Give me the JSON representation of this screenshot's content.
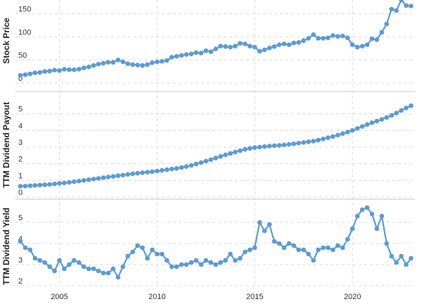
{
  "colors": {
    "series": "#5b9bd5",
    "grid": "#d9d9d9",
    "text": "#333333",
    "background": "#ffffff"
  },
  "chart_data": [
    {
      "type": "line",
      "ylabel": "Stock Price",
      "ylim": [
        0,
        180
      ],
      "yticks": [
        0,
        50,
        100,
        150
      ],
      "xlim": [
        2002.75,
        2023.2
      ],
      "grid": true,
      "series": [
        {
          "x": [
            2003.0,
            2003.25,
            2003.5,
            2003.75,
            2004.0,
            2004.25,
            2004.5,
            2004.75,
            2005.0,
            2005.25,
            2005.5,
            2005.75,
            2006.0,
            2006.25,
            2006.5,
            2006.75,
            2007.0,
            2007.25,
            2007.5,
            2007.75,
            2008.0,
            2008.25,
            2008.5,
            2008.75,
            2009.0,
            2009.25,
            2009.5,
            2009.75,
            2010.0,
            2010.25,
            2010.5,
            2010.75,
            2011.0,
            2011.25,
            2011.5,
            2011.75,
            2012.0,
            2012.25,
            2012.5,
            2012.75,
            2013.0,
            2013.25,
            2013.5,
            2013.75,
            2014.0,
            2014.25,
            2014.5,
            2014.75,
            2015.0,
            2015.25,
            2015.5,
            2015.75,
            2016.0,
            2016.25,
            2016.5,
            2016.75,
            2017.0,
            2017.25,
            2017.5,
            2017.75,
            2018.0,
            2018.25,
            2018.5,
            2018.75,
            2019.0,
            2019.25,
            2019.5,
            2019.75,
            2020.0,
            2020.25,
            2020.5,
            2020.75,
            2021.0,
            2021.25,
            2021.5,
            2021.75,
            2022.0,
            2022.25,
            2022.5,
            2022.75,
            2023.0
          ],
          "y": [
            17,
            18,
            20,
            22,
            23,
            25,
            26,
            28,
            27,
            30,
            29,
            29,
            30,
            33,
            35,
            38,
            41,
            43,
            45,
            45,
            50,
            46,
            42,
            40,
            39,
            38,
            40,
            44,
            46,
            47,
            49,
            56,
            58,
            60,
            62,
            63,
            66,
            65,
            70,
            68,
            74,
            80,
            79,
            78,
            80,
            86,
            85,
            80,
            78,
            69,
            72,
            76,
            79,
            83,
            85,
            83,
            87,
            88,
            92,
            97,
            105,
            97,
            97,
            98,
            103,
            101,
            102,
            98,
            83,
            78,
            80,
            83,
            96,
            94,
            110,
            128,
            160,
            157,
            180,
            168,
            167
          ]
        }
      ]
    },
    {
      "type": "line",
      "ylabel": "TTM Dividend Payout",
      "ylim": [
        0,
        6
      ],
      "yticks": [
        0,
        1,
        2,
        3,
        4,
        5
      ],
      "xlim": [
        2002.75,
        2023.2
      ],
      "grid": true,
      "series": [
        {
          "x": [
            2003.0,
            2003.25,
            2003.5,
            2003.75,
            2004.0,
            2004.25,
            2004.5,
            2004.75,
            2005.0,
            2005.25,
            2005.5,
            2005.75,
            2006.0,
            2006.25,
            2006.5,
            2006.75,
            2007.0,
            2007.25,
            2007.5,
            2007.75,
            2008.0,
            2008.25,
            2008.5,
            2008.75,
            2009.0,
            2009.25,
            2009.5,
            2009.75,
            2010.0,
            2010.25,
            2010.5,
            2010.75,
            2011.0,
            2011.25,
            2011.5,
            2011.75,
            2012.0,
            2012.25,
            2012.5,
            2012.75,
            2013.0,
            2013.25,
            2013.5,
            2013.75,
            2014.0,
            2014.25,
            2014.5,
            2014.75,
            2015.0,
            2015.25,
            2015.5,
            2015.75,
            2016.0,
            2016.25,
            2016.5,
            2016.75,
            2017.0,
            2017.25,
            2017.5,
            2017.75,
            2018.0,
            2018.25,
            2018.5,
            2018.75,
            2019.0,
            2019.25,
            2019.5,
            2019.75,
            2020.0,
            2020.25,
            2020.5,
            2020.75,
            2021.0,
            2021.25,
            2021.5,
            2021.75,
            2022.0,
            2022.25,
            2022.5,
            2022.75,
            2023.0
          ],
          "y": [
            0.65,
            0.66,
            0.68,
            0.7,
            0.72,
            0.74,
            0.76,
            0.79,
            0.82,
            0.85,
            0.88,
            0.92,
            0.96,
            1.0,
            1.04,
            1.08,
            1.12,
            1.16,
            1.2,
            1.24,
            1.28,
            1.32,
            1.36,
            1.4,
            1.43,
            1.46,
            1.49,
            1.52,
            1.56,
            1.6,
            1.64,
            1.68,
            1.72,
            1.77,
            1.83,
            1.9,
            1.98,
            2.07,
            2.16,
            2.25,
            2.34,
            2.44,
            2.54,
            2.62,
            2.7,
            2.78,
            2.86,
            2.92,
            2.97,
            3.0,
            3.03,
            3.06,
            3.08,
            3.1,
            3.13,
            3.16,
            3.2,
            3.24,
            3.28,
            3.32,
            3.36,
            3.42,
            3.49,
            3.56,
            3.63,
            3.72,
            3.81,
            3.9,
            4.0,
            4.12,
            4.24,
            4.35,
            4.46,
            4.56,
            4.66,
            4.78,
            4.9,
            5.04,
            5.2,
            5.35,
            5.48
          ]
        }
      ]
    },
    {
      "type": "line",
      "ylabel": "TTM Dividend Yield",
      "ylim": [
        2,
        6
      ],
      "yticks": [
        2,
        3,
        4,
        5
      ],
      "xticks": [
        2005,
        2010,
        2015,
        2020
      ],
      "xlim": [
        2002.75,
        2023.2
      ],
      "grid": true,
      "series": [
        {
          "x": [
            2003.0,
            2003.25,
            2003.5,
            2003.75,
            2004.0,
            2004.25,
            2004.5,
            2004.75,
            2005.0,
            2005.25,
            2005.5,
            2005.75,
            2006.0,
            2006.25,
            2006.5,
            2006.75,
            2007.0,
            2007.25,
            2007.5,
            2007.75,
            2008.0,
            2008.25,
            2008.5,
            2008.75,
            2009.0,
            2009.25,
            2009.5,
            2009.75,
            2010.0,
            2010.25,
            2010.5,
            2010.75,
            2011.0,
            2011.25,
            2011.5,
            2011.75,
            2012.0,
            2012.25,
            2012.5,
            2012.75,
            2013.0,
            2013.25,
            2013.5,
            2013.75,
            2014.0,
            2014.25,
            2014.5,
            2014.75,
            2015.0,
            2015.25,
            2015.5,
            2015.75,
            2016.0,
            2016.25,
            2016.5,
            2016.75,
            2017.0,
            2017.25,
            2017.5,
            2017.75,
            2018.0,
            2018.25,
            2018.5,
            2018.75,
            2019.0,
            2019.25,
            2019.5,
            2019.75,
            2020.0,
            2020.25,
            2020.5,
            2020.75,
            2021.0,
            2021.25,
            2021.5,
            2021.75,
            2022.0,
            2022.25,
            2022.5,
            2022.75,
            2023.0
          ],
          "y": [
            4.1,
            3.8,
            3.7,
            3.3,
            3.2,
            3.1,
            2.9,
            2.7,
            3.2,
            2.8,
            3.0,
            3.2,
            3.1,
            2.9,
            2.8,
            2.8,
            2.7,
            2.6,
            2.6,
            2.8,
            2.4,
            2.9,
            3.4,
            3.6,
            3.9,
            3.8,
            3.3,
            3.7,
            3.5,
            3.5,
            3.2,
            2.9,
            2.9,
            3.0,
            3.0,
            3.1,
            3.2,
            3.0,
            3.2,
            3.1,
            3.0,
            3.1,
            3.2,
            3.5,
            3.2,
            3.3,
            3.6,
            3.7,
            3.8,
            5.0,
            4.6,
            4.9,
            4.1,
            4.0,
            3.8,
            4.0,
            3.9,
            3.7,
            3.7,
            3.5,
            3.2,
            3.7,
            3.8,
            3.8,
            3.7,
            3.9,
            3.8,
            4.2,
            4.7,
            5.3,
            5.6,
            5.7,
            5.4,
            4.7,
            5.3,
            4.0,
            3.4,
            3.1,
            3.4,
            3.0,
            3.3
          ]
        }
      ]
    }
  ]
}
